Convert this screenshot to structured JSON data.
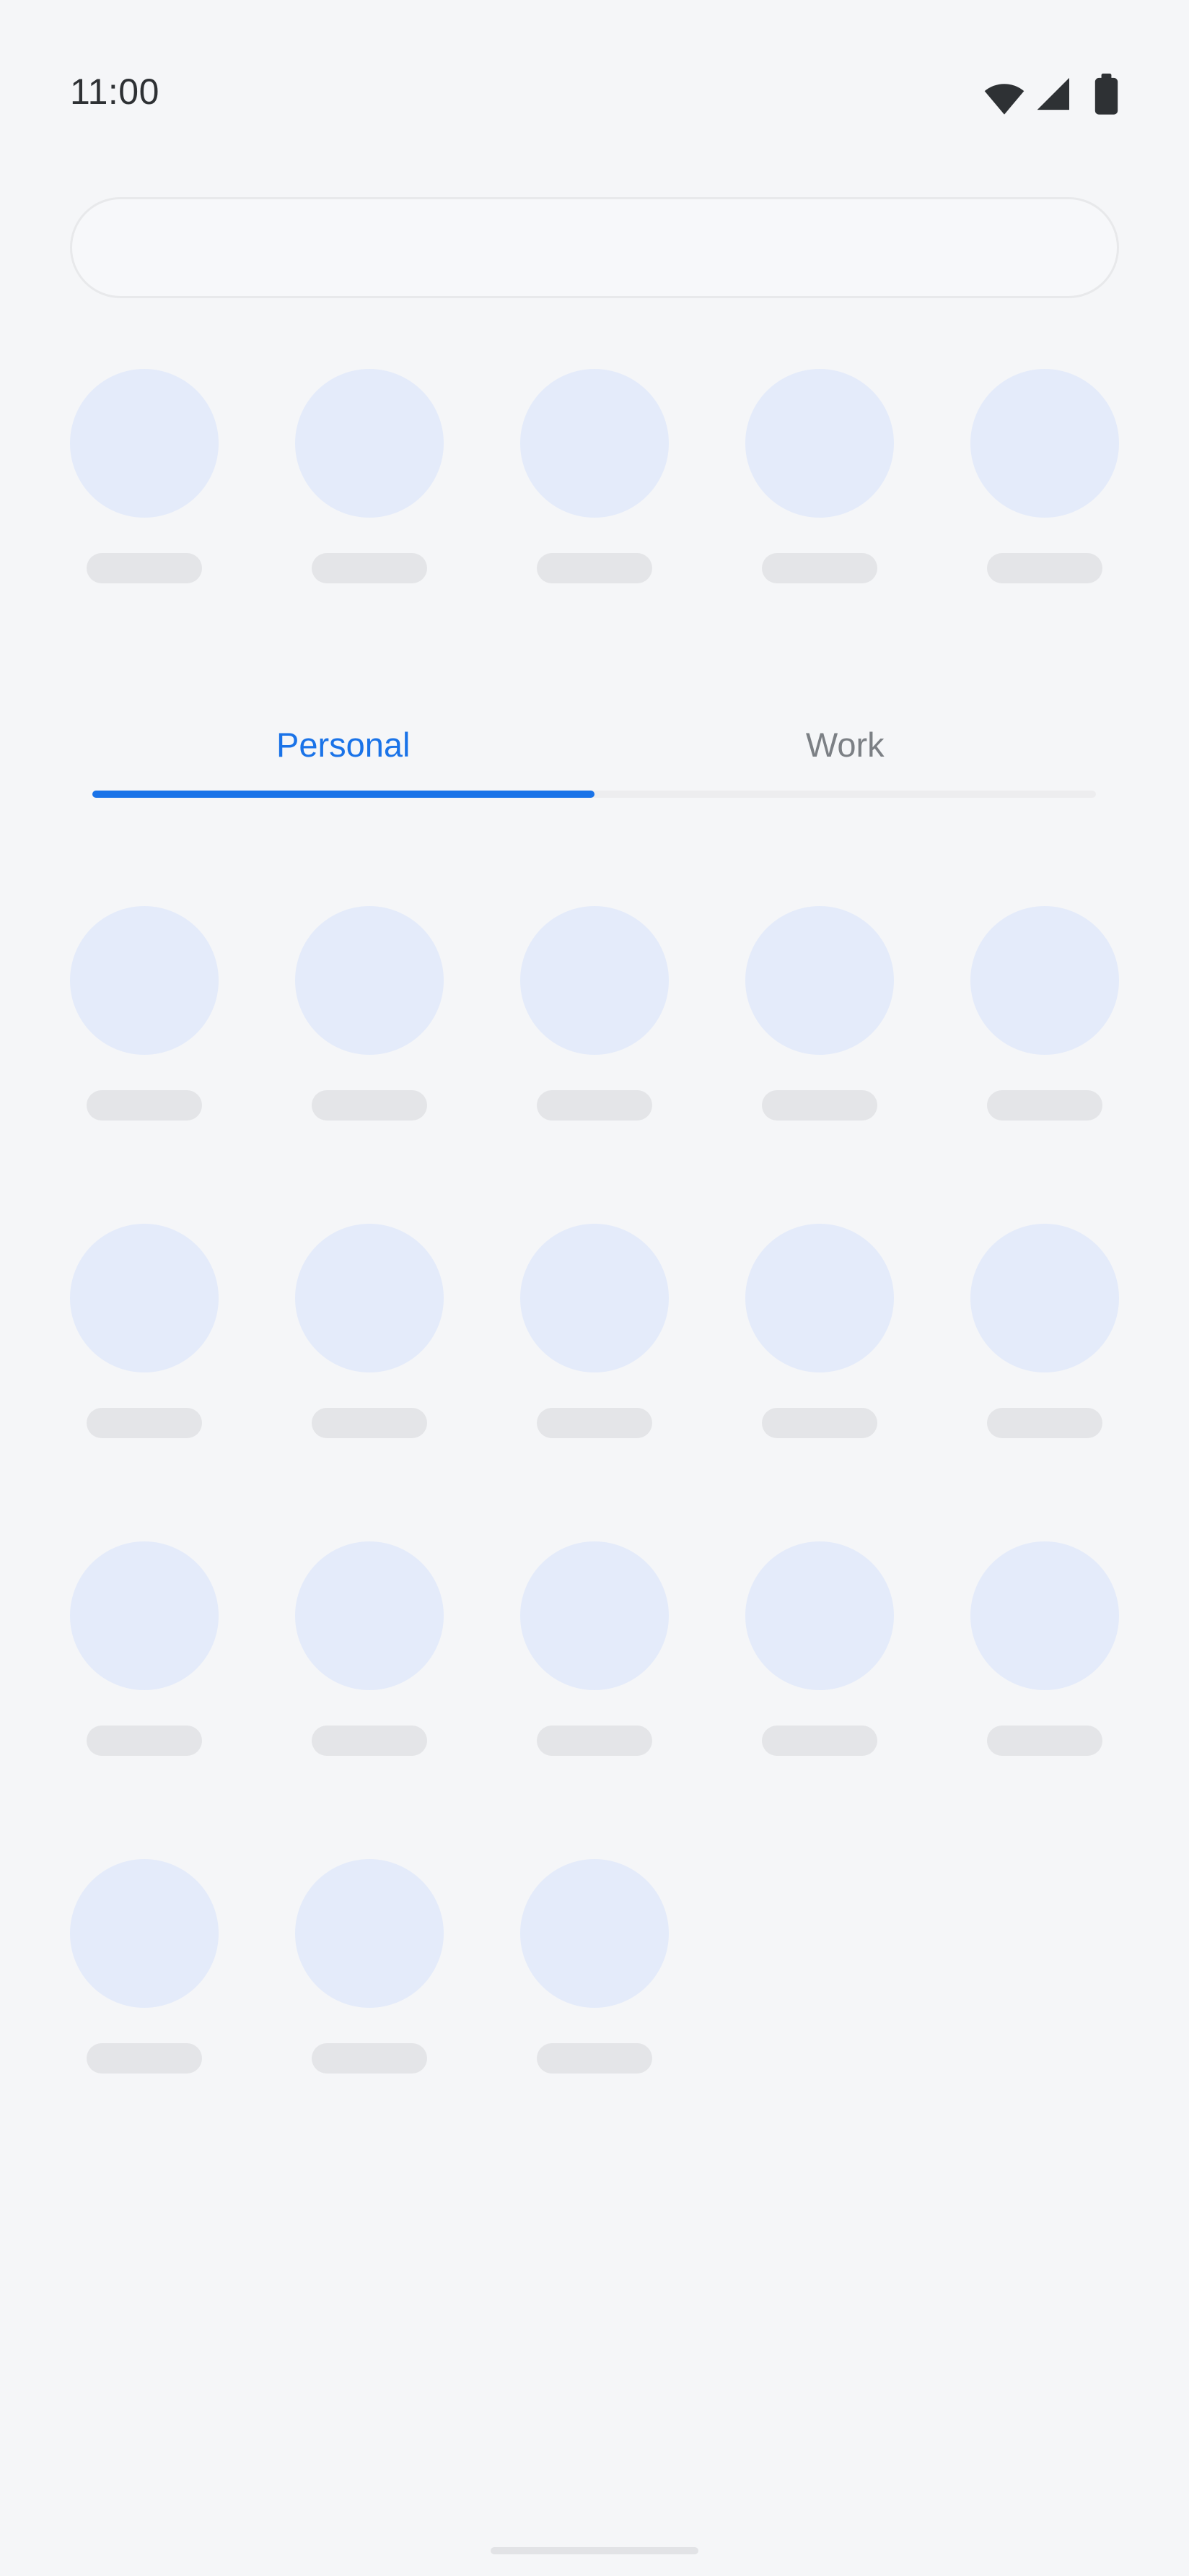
{
  "status_bar": {
    "time": "11:00",
    "icons": [
      "wifi-icon",
      "cellular-signal-icon",
      "battery-icon"
    ]
  },
  "search_bar": {
    "value": "",
    "placeholder": ""
  },
  "tabs": {
    "items": [
      {
        "label": "Personal",
        "active": true
      },
      {
        "label": "Work",
        "active": false
      }
    ]
  },
  "suggestions_row": {
    "item_count": 5
  },
  "app_grid": {
    "columns": 5,
    "row_item_counts": [
      5,
      5,
      5,
      3
    ]
  },
  "colors": {
    "background": "#f5f6f8",
    "icon_placeholder": "#e4ebfa",
    "label_placeholder": "#e4e5e8",
    "active_tab": "#1a73e8",
    "inactive_tab": "#7c8085",
    "tab_track": "#ededef",
    "status_fg": "#2e3134",
    "search_border": "#e8e9eb",
    "search_fill": "#f7f8fa",
    "gesture_bar": "#e2e3e6"
  }
}
